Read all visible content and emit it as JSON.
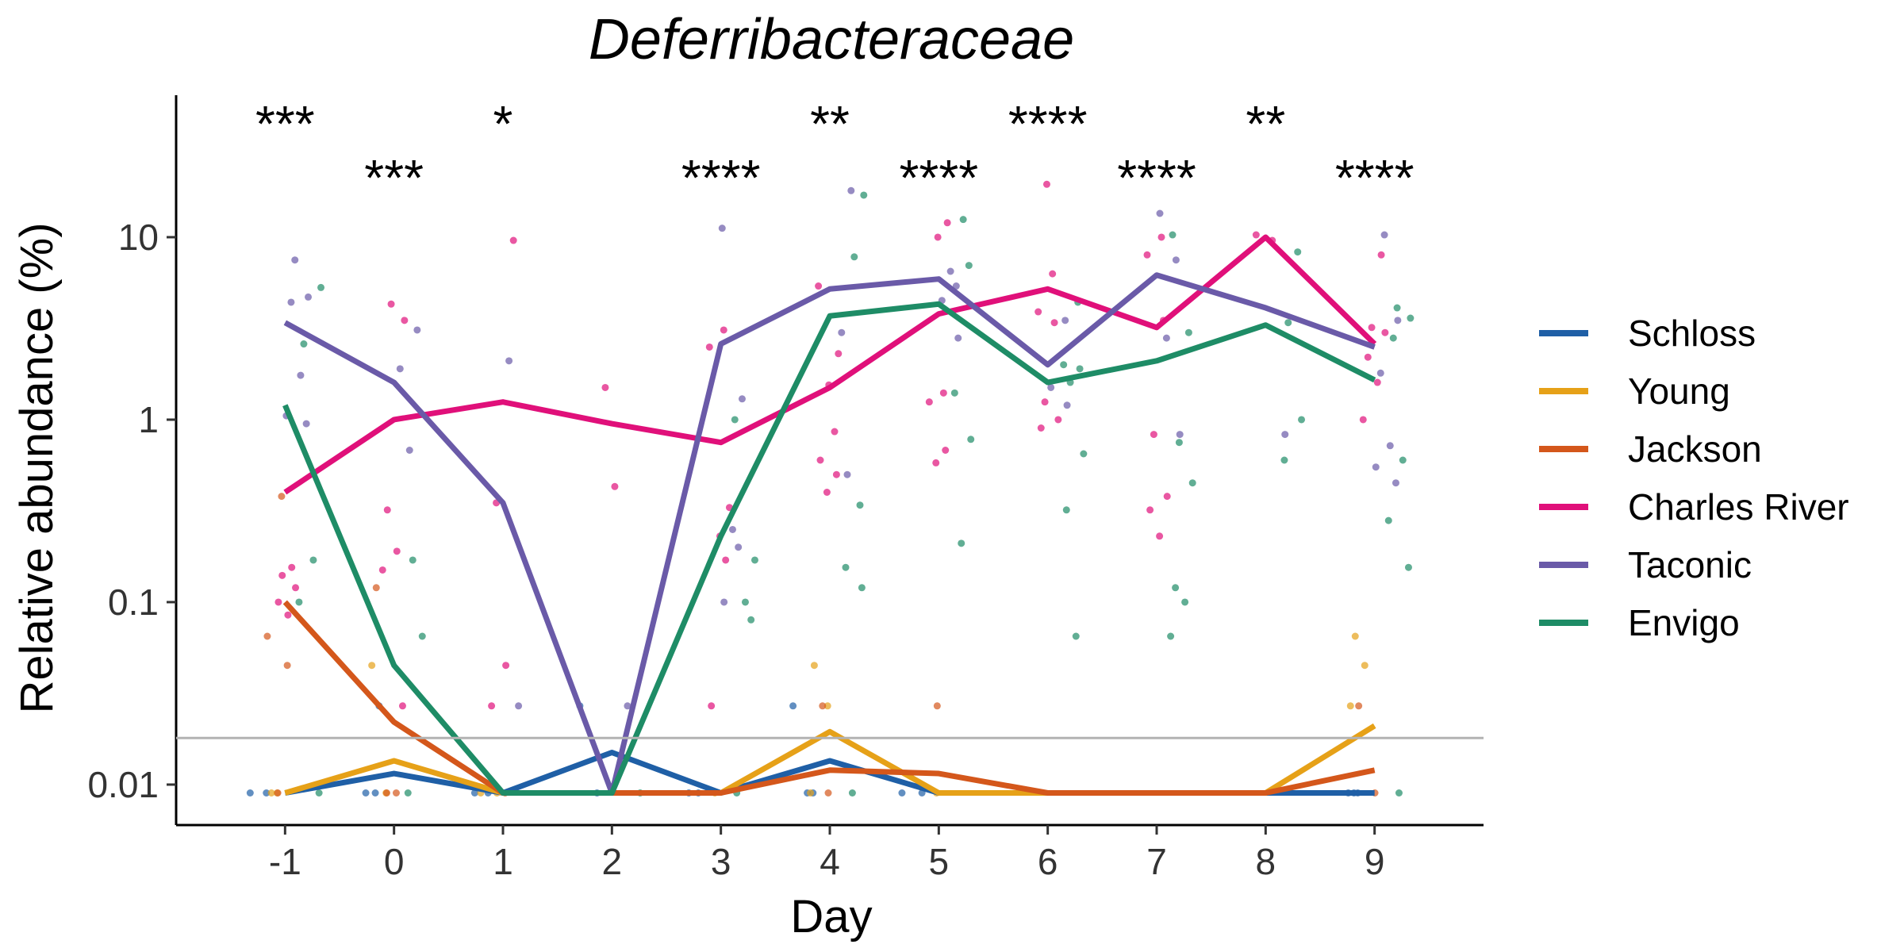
{
  "chart_data": {
    "type": "line",
    "title": "Deferribacteraceae",
    "xlabel": "Day",
    "ylabel": "Relative abundance (%)",
    "x": [
      -1,
      0,
      1,
      2,
      3,
      4,
      5,
      6,
      7,
      8,
      9
    ],
    "x_ticks": [
      "-1",
      "0",
      "1",
      "2",
      "3",
      "4",
      "5",
      "6",
      "7",
      "8",
      "9"
    ],
    "xlim": [
      -2,
      10
    ],
    "y_scale": "log",
    "ylim": [
      0.006,
      60
    ],
    "y_ticks": [
      {
        "value": 0.01,
        "label": "0.01"
      },
      {
        "value": 0.1,
        "label": "0.1"
      },
      {
        "value": 1,
        "label": "1"
      },
      {
        "value": 10,
        "label": "10"
      }
    ],
    "limit_of_detection": 0.018,
    "limit_line_color": "#b3b3b3",
    "significance": [
      {
        "day": -1,
        "label": "***",
        "row": 1
      },
      {
        "day": 0,
        "label": "***",
        "row": 2
      },
      {
        "day": 1,
        "label": "*",
        "row": 1
      },
      {
        "day": 3,
        "label": "****",
        "row": 2
      },
      {
        "day": 4,
        "label": "**",
        "row": 1
      },
      {
        "day": 5,
        "label": "****",
        "row": 2
      },
      {
        "day": 6,
        "label": "****",
        "row": 1
      },
      {
        "day": 7,
        "label": "****",
        "row": 2
      },
      {
        "day": 8,
        "label": "**",
        "row": 1
      },
      {
        "day": 9,
        "label": "****",
        "row": 2
      }
    ],
    "legend_position": "right",
    "grid": false,
    "series": [
      {
        "name": "Schloss",
        "color": "#1f5fa6",
        "values": [
          0.009,
          0.0115,
          0.009,
          0.015,
          0.009,
          0.0135,
          0.009,
          0.009,
          0.009,
          0.009,
          0.009
        ]
      },
      {
        "name": "Young",
        "color": "#e6a118",
        "values": [
          0.009,
          0.0135,
          0.009,
          0.009,
          0.009,
          0.0195,
          0.009,
          0.009,
          0.009,
          0.009,
          0.021
        ]
      },
      {
        "name": "Jackson",
        "color": "#d4571b",
        "values": [
          0.1,
          0.022,
          0.009,
          0.009,
          0.009,
          0.012,
          0.0115,
          0.009,
          0.009,
          0.009,
          0.012
        ]
      },
      {
        "name": "Charles River",
        "color": "#e0107a",
        "values": [
          0.4,
          1.0,
          1.25,
          0.95,
          0.75,
          1.5,
          3.8,
          5.2,
          3.2,
          10.0,
          2.6
        ]
      },
      {
        "name": "Taconic",
        "color": "#6a5aa8",
        "values": [
          3.4,
          1.6,
          0.35,
          0.009,
          2.6,
          5.2,
          5.9,
          2.0,
          6.2,
          4.1,
          2.5
        ]
      },
      {
        "name": "Envigo",
        "color": "#1e8c66",
        "values": [
          1.2,
          0.045,
          0.009,
          0.009,
          0.23,
          3.7,
          4.3,
          1.6,
          2.1,
          3.3,
          1.65
        ]
      }
    ],
    "points": [
      {
        "series": 0,
        "day": -1,
        "values": [
          0.009,
          0.009
        ]
      },
      {
        "series": 0,
        "day": 0,
        "values": [
          0.009,
          0.009,
          0.027
        ]
      },
      {
        "series": 0,
        "day": 1,
        "values": [
          0.009,
          0.009
        ]
      },
      {
        "series": 0,
        "day": 2,
        "values": [
          0.009,
          0.027
        ]
      },
      {
        "series": 0,
        "day": 3,
        "values": [
          0.009,
          0.009
        ]
      },
      {
        "series": 0,
        "day": 4,
        "values": [
          0.009,
          0.027,
          0.009
        ]
      },
      {
        "series": 0,
        "day": 5,
        "values": [
          0.009,
          0.009
        ]
      },
      {
        "series": 0,
        "day": 9,
        "values": [
          0.009,
          0.009,
          0.009
        ]
      },
      {
        "series": 1,
        "day": -1,
        "values": [
          0.009,
          0.009
        ]
      },
      {
        "series": 1,
        "day": 0,
        "values": [
          0.009,
          0.045
        ]
      },
      {
        "series": 1,
        "day": 1,
        "values": [
          0.009,
          0.009
        ]
      },
      {
        "series": 1,
        "day": 3,
        "values": [
          0.009
        ]
      },
      {
        "series": 1,
        "day": 4,
        "values": [
          0.045,
          0.027,
          0.009
        ]
      },
      {
        "series": 1,
        "day": 5,
        "values": [
          0.009
        ]
      },
      {
        "series": 1,
        "day": 9,
        "values": [
          0.065,
          0.045,
          0.027
        ]
      },
      {
        "series": 2,
        "day": -1,
        "values": [
          0.38,
          0.065,
          0.045,
          0.009
        ]
      },
      {
        "series": 2,
        "day": 0,
        "values": [
          0.12,
          0.009,
          0.009
        ]
      },
      {
        "series": 2,
        "day": 1,
        "values": [
          0.009
        ]
      },
      {
        "series": 2,
        "day": 4,
        "values": [
          0.027,
          0.009
        ]
      },
      {
        "series": 2,
        "day": 5,
        "values": [
          0.027
        ]
      },
      {
        "series": 2,
        "day": 9,
        "values": [
          0.027,
          0.009
        ]
      },
      {
        "series": 3,
        "day": -1,
        "values": [
          0.155,
          0.14,
          0.12,
          0.1,
          0.085
        ]
      },
      {
        "series": 3,
        "day": 0,
        "values": [
          4.3,
          3.5,
          0.32,
          0.19,
          0.15,
          0.027
        ]
      },
      {
        "series": 3,
        "day": 1,
        "values": [
          9.6,
          0.35,
          0.045,
          0.027
        ]
      },
      {
        "series": 3,
        "day": 2,
        "values": [
          1.5,
          0.43
        ]
      },
      {
        "series": 3,
        "day": 3,
        "values": [
          3.1,
          2.5,
          0.33,
          0.23,
          0.17,
          0.027
        ]
      },
      {
        "series": 3,
        "day": 4,
        "values": [
          5.4,
          2.3,
          1.55,
          0.86,
          0.6,
          0.5,
          0.4
        ]
      },
      {
        "series": 3,
        "day": 5,
        "values": [
          12.0,
          10.0,
          1.4,
          1.25,
          0.68,
          0.58
        ]
      },
      {
        "series": 3,
        "day": 6,
        "values": [
          19.5,
          6.3,
          3.9,
          3.4,
          1.25,
          1.0,
          0.9
        ]
      },
      {
        "series": 3,
        "day": 7,
        "values": [
          10.0,
          8.0,
          3.5,
          0.83,
          0.38,
          0.32,
          0.23
        ]
      },
      {
        "series": 3,
        "day": 8,
        "values": [
          10.3,
          9.6
        ]
      },
      {
        "series": 3,
        "day": 9,
        "values": [
          8.0,
          3.2,
          3.0,
          2.2,
          1.6,
          1.0
        ]
      },
      {
        "series": 4,
        "day": -1,
        "values": [
          7.5,
          4.7,
          4.4,
          1.75,
          1.05,
          0.95
        ]
      },
      {
        "series": 4,
        "day": 0,
        "values": [
          3.1,
          1.9,
          0.68
        ]
      },
      {
        "series": 4,
        "day": 1,
        "values": [
          2.1,
          0.027
        ]
      },
      {
        "series": 4,
        "day": 2,
        "values": [
          0.027
        ]
      },
      {
        "series": 4,
        "day": 3,
        "values": [
          11.2,
          1.3,
          0.25,
          0.2,
          0.1
        ]
      },
      {
        "series": 4,
        "day": 4,
        "values": [
          18.0,
          3.0,
          0.5
        ]
      },
      {
        "series": 4,
        "day": 5,
        "values": [
          6.5,
          5.4,
          4.5,
          2.8
        ]
      },
      {
        "series": 4,
        "day": 6,
        "values": [
          3.5,
          1.5,
          1.2
        ]
      },
      {
        "series": 4,
        "day": 7,
        "values": [
          13.5,
          7.5,
          2.8,
          0.83
        ]
      },
      {
        "series": 4,
        "day": 8,
        "values": [
          0.83
        ]
      },
      {
        "series": 4,
        "day": 9,
        "values": [
          10.3,
          3.5,
          1.8,
          0.72,
          0.55,
          0.45
        ]
      },
      {
        "series": 5,
        "day": -1,
        "values": [
          5.3,
          2.6,
          0.17,
          0.1,
          0.009
        ]
      },
      {
        "series": 5,
        "day": 0,
        "values": [
          0.17,
          0.065,
          0.009
        ]
      },
      {
        "series": 5,
        "day": 2,
        "values": [
          0.009
        ]
      },
      {
        "series": 5,
        "day": 3,
        "values": [
          1.0,
          0.17,
          0.1,
          0.08,
          0.009
        ]
      },
      {
        "series": 5,
        "day": 4,
        "values": [
          17.0,
          7.8,
          0.34,
          0.155,
          0.12,
          0.009
        ]
      },
      {
        "series": 5,
        "day": 5,
        "values": [
          12.5,
          7.0,
          1.4,
          0.78,
          0.21
        ]
      },
      {
        "series": 5,
        "day": 6,
        "values": [
          4.4,
          2.0,
          1.9,
          1.6,
          0.65,
          0.32,
          0.065
        ]
      },
      {
        "series": 5,
        "day": 7,
        "values": [
          10.3,
          3.0,
          0.75,
          0.45,
          0.12,
          0.1,
          0.065
        ]
      },
      {
        "series": 5,
        "day": 8,
        "values": [
          8.3,
          3.4,
          1.0,
          0.6
        ]
      },
      {
        "series": 5,
        "day": 9,
        "values": [
          4.1,
          3.6,
          2.8,
          0.6,
          0.28,
          0.155,
          0.009
        ]
      }
    ]
  }
}
